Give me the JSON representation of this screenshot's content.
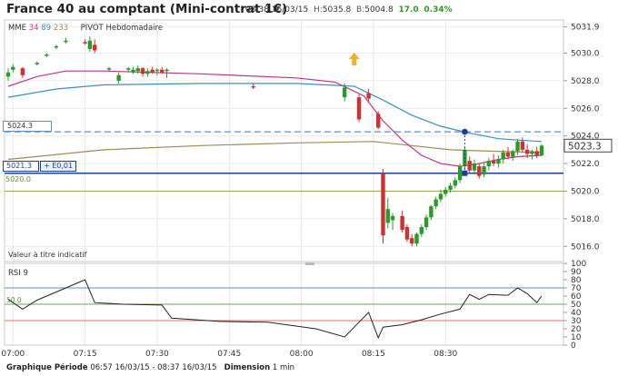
{
  "header": {
    "title": "France 40 au comptant (Mini-contrat 1€)",
    "time": "08:38 16/03/15",
    "high_label": "H:",
    "high": "5035.8",
    "low_label": "B:",
    "low": "5004.8",
    "change": "17.0",
    "change_pct": "0.34%"
  },
  "legend": {
    "mme_label": "MME",
    "mme1": "34",
    "mme2": "89",
    "mme3": "233",
    "pivot_label": "PIVOT",
    "pivot_period": "Hebdomadaire"
  },
  "tags": {
    "blue_line": "5024.3",
    "current_line": "5021.3",
    "current_delta": "+ E0,01",
    "green_line": "5020.0",
    "current_price": "5023.3"
  },
  "note": "Valeur à titre indicatif",
  "rsi": {
    "label": "RSI",
    "period": "9",
    "level_label": "50.0"
  },
  "footer": {
    "period_label": "Graphique Période",
    "period_value": "06:57 16/03/15 - 08:37 16/03/15",
    "dimension_label": "Dimension",
    "dimension_value": "1 min"
  },
  "colors": {
    "up": "#2a9a2a",
    "down": "#d13030",
    "ema34": "#c2338a",
    "ema89": "#3a8fc0",
    "ema233": "#a08a55",
    "current_line": "#1a3fa0",
    "pivot_line": "#5a8fd0",
    "arrow": "#f0b030"
  },
  "chart_data": [
    {
      "type": "candlestick",
      "title": "France 40 au comptant (Mini-contrat 1€)",
      "x_ticks": [
        "07:00",
        "07:15",
        "07:30",
        "07:45",
        "08:00",
        "08:15",
        "08:30"
      ],
      "y_ticks": [
        5016.0,
        5018.0,
        5020.0,
        5022.0,
        5024.0,
        5026.0,
        5028.0,
        5030.0,
        5031.9
      ],
      "ylim": [
        5014.9,
        5032.4
      ],
      "current_price": 5023.3,
      "horizontal_lines": [
        5024.3,
        5021.3,
        5020.0
      ],
      "candles": [
        {
          "t": 0,
          "o": 5028.3,
          "h": 5028.9,
          "l": 5028.0,
          "c": 5028.6
        },
        {
          "t": 1,
          "o": 5028.8,
          "h": 5029.2,
          "l": 5028.6,
          "c": 5029.0
        },
        {
          "t": 3,
          "o": 5028.9,
          "h": 5029.0,
          "l": 5028.2,
          "c": 5028.4
        },
        {
          "t": 6,
          "o": 5029.2,
          "h": 5029.4,
          "l": 5029.1,
          "c": 5029.3
        },
        {
          "t": 8,
          "o": 5029.8,
          "h": 5030.0,
          "l": 5029.7,
          "c": 5029.9
        },
        {
          "t": 10,
          "o": 5030.4,
          "h": 5030.6,
          "l": 5030.3,
          "c": 5030.5
        },
        {
          "t": 12,
          "o": 5030.8,
          "h": 5031.1,
          "l": 5030.7,
          "c": 5030.9
        },
        {
          "t": 16,
          "o": 5030.8,
          "h": 5031.0,
          "l": 5030.6,
          "c": 5030.7
        },
        {
          "t": 17,
          "o": 5030.3,
          "h": 5031.2,
          "l": 5030.1,
          "c": 5030.9
        },
        {
          "t": 18,
          "o": 5030.6,
          "h": 5031.0,
          "l": 5030.0,
          "c": 5030.2
        },
        {
          "t": 21,
          "o": 5028.8,
          "h": 5029.0,
          "l": 5028.7,
          "c": 5028.9
        },
        {
          "t": 23,
          "o": 5028.0,
          "h": 5028.6,
          "l": 5027.8,
          "c": 5028.4
        },
        {
          "t": 25,
          "o": 5028.8,
          "h": 5029.0,
          "l": 5028.6,
          "c": 5028.9
        },
        {
          "t": 26,
          "o": 5028.6,
          "h": 5029.0,
          "l": 5028.5,
          "c": 5028.8
        },
        {
          "t": 27,
          "o": 5028.7,
          "h": 5029.1,
          "l": 5028.5,
          "c": 5028.9
        },
        {
          "t": 28,
          "o": 5028.9,
          "h": 5029.0,
          "l": 5028.3,
          "c": 5028.5
        },
        {
          "t": 29,
          "o": 5028.5,
          "h": 5028.9,
          "l": 5028.3,
          "c": 5028.7
        },
        {
          "t": 30,
          "o": 5028.8,
          "h": 5029.0,
          "l": 5028.5,
          "c": 5028.6
        },
        {
          "t": 31,
          "o": 5028.7,
          "h": 5028.9,
          "l": 5028.4,
          "c": 5028.8
        },
        {
          "t": 32,
          "o": 5028.8,
          "h": 5029.0,
          "l": 5028.5,
          "c": 5028.6
        },
        {
          "t": 33,
          "o": 5028.7,
          "h": 5028.9,
          "l": 5028.2,
          "c": 5028.8
        },
        {
          "t": 51,
          "o": 5027.6,
          "h": 5027.8,
          "l": 5027.4,
          "c": 5027.5
        },
        {
          "t": 70,
          "o": 5026.8,
          "h": 5027.8,
          "l": 5026.5,
          "c": 5027.5
        },
        {
          "t": 73,
          "o": 5026.8,
          "h": 5027.0,
          "l": 5025.0,
          "c": 5025.2
        },
        {
          "t": 75,
          "o": 5027.1,
          "h": 5027.4,
          "l": 5026.5,
          "c": 5026.7
        },
        {
          "t": 77,
          "o": 5025.6,
          "h": 5025.8,
          "l": 5024.5,
          "c": 5024.6
        },
        {
          "t": 78,
          "o": 5021.3,
          "h": 5021.6,
          "l": 5016.2,
          "c": 5016.8
        },
        {
          "t": 79,
          "o": 5017.7,
          "h": 5019.5,
          "l": 5017.3,
          "c": 5018.7
        },
        {
          "t": 80,
          "o": 5017.9,
          "h": 5018.4,
          "l": 5017.2,
          "c": 5018.2
        },
        {
          "t": 82,
          "o": 5018.2,
          "h": 5018.6,
          "l": 5017.0,
          "c": 5017.2
        },
        {
          "t": 83,
          "o": 5017.4,
          "h": 5017.6,
          "l": 5016.3,
          "c": 5016.5
        },
        {
          "t": 84,
          "o": 5016.6,
          "h": 5016.9,
          "l": 5016.0,
          "c": 5016.2
        },
        {
          "t": 85,
          "o": 5016.2,
          "h": 5017.0,
          "l": 5016.0,
          "c": 5016.9
        },
        {
          "t": 86,
          "o": 5016.9,
          "h": 5017.6,
          "l": 5016.7,
          "c": 5017.4
        },
        {
          "t": 87,
          "o": 5017.4,
          "h": 5018.3,
          "l": 5017.2,
          "c": 5018.1
        },
        {
          "t": 88,
          "o": 5018.1,
          "h": 5019.0,
          "l": 5017.9,
          "c": 5018.9
        },
        {
          "t": 89,
          "o": 5018.9,
          "h": 5019.6,
          "l": 5018.7,
          "c": 5019.4
        },
        {
          "t": 90,
          "o": 5019.4,
          "h": 5020.1,
          "l": 5019.2,
          "c": 5019.8
        },
        {
          "t": 91,
          "o": 5019.8,
          "h": 5020.3,
          "l": 5019.6,
          "c": 5020.1
        },
        {
          "t": 92,
          "o": 5020.1,
          "h": 5020.6,
          "l": 5019.9,
          "c": 5020.4
        },
        {
          "t": 93,
          "o": 5020.4,
          "h": 5021.0,
          "l": 5020.2,
          "c": 5020.8
        },
        {
          "t": 94,
          "o": 5020.8,
          "h": 5022.0,
          "l": 5020.6,
          "c": 5021.8
        },
        {
          "t": 95,
          "o": 5021.8,
          "h": 5023.2,
          "l": 5021.6,
          "c": 5023.0
        },
        {
          "t": 96,
          "o": 5022.2,
          "h": 5022.5,
          "l": 5021.3,
          "c": 5021.5
        },
        {
          "t": 97,
          "o": 5021.5,
          "h": 5022.3,
          "l": 5021.2,
          "c": 5022.0
        },
        {
          "t": 98,
          "o": 5021.8,
          "h": 5022.0,
          "l": 5020.9,
          "c": 5021.1
        },
        {
          "t": 99,
          "o": 5021.2,
          "h": 5022.0,
          "l": 5021.0,
          "c": 5021.8
        },
        {
          "t": 100,
          "o": 5021.8,
          "h": 5022.4,
          "l": 5021.5,
          "c": 5022.2
        },
        {
          "t": 101,
          "o": 5022.2,
          "h": 5022.7,
          "l": 5021.8,
          "c": 5022.0
        },
        {
          "t": 102,
          "o": 5022.0,
          "h": 5022.6,
          "l": 5021.7,
          "c": 5022.3
        },
        {
          "t": 103,
          "o": 5022.3,
          "h": 5023.0,
          "l": 5022.0,
          "c": 5022.8
        },
        {
          "t": 104,
          "o": 5022.8,
          "h": 5023.2,
          "l": 5022.3,
          "c": 5022.5
        },
        {
          "t": 105,
          "o": 5022.5,
          "h": 5023.0,
          "l": 5022.2,
          "c": 5022.9
        },
        {
          "t": 106,
          "o": 5022.9,
          "h": 5023.8,
          "l": 5022.6,
          "c": 5023.6
        },
        {
          "t": 107,
          "o": 5023.6,
          "h": 5023.9,
          "l": 5022.8,
          "c": 5023.0
        },
        {
          "t": 108,
          "o": 5023.0,
          "h": 5023.4,
          "l": 5022.4,
          "c": 5022.7
        },
        {
          "t": 109,
          "o": 5022.7,
          "h": 5023.0,
          "l": 5022.3,
          "c": 5022.9
        },
        {
          "t": 110,
          "o": 5022.9,
          "h": 5023.2,
          "l": 5022.4,
          "c": 5022.6
        },
        {
          "t": 111,
          "o": 5022.6,
          "h": 5023.4,
          "l": 5022.5,
          "c": 5023.3
        }
      ],
      "ema34": [
        {
          "t": 0,
          "v": 5027.6
        },
        {
          "t": 6,
          "v": 5028.3
        },
        {
          "t": 12,
          "v": 5028.7
        },
        {
          "t": 20,
          "v": 5028.7
        },
        {
          "t": 40,
          "v": 5028.5
        },
        {
          "t": 60,
          "v": 5028.2
        },
        {
          "t": 68,
          "v": 5027.9
        },
        {
          "t": 74,
          "v": 5026.9
        },
        {
          "t": 78,
          "v": 5025.1
        },
        {
          "t": 82,
          "v": 5023.7
        },
        {
          "t": 86,
          "v": 5022.6
        },
        {
          "t": 90,
          "v": 5022.0
        },
        {
          "t": 94,
          "v": 5021.8
        },
        {
          "t": 98,
          "v": 5022.0
        },
        {
          "t": 102,
          "v": 5022.3
        },
        {
          "t": 106,
          "v": 5022.5
        },
        {
          "t": 111,
          "v": 5022.6
        }
      ],
      "ema89": [
        {
          "t": 0,
          "v": 5026.8
        },
        {
          "t": 10,
          "v": 5027.4
        },
        {
          "t": 20,
          "v": 5027.7
        },
        {
          "t": 40,
          "v": 5027.8
        },
        {
          "t": 60,
          "v": 5027.8
        },
        {
          "t": 72,
          "v": 5027.6
        },
        {
          "t": 78,
          "v": 5026.6
        },
        {
          "t": 84,
          "v": 5025.5
        },
        {
          "t": 90,
          "v": 5024.7
        },
        {
          "t": 96,
          "v": 5024.2
        },
        {
          "t": 102,
          "v": 5023.8
        },
        {
          "t": 106,
          "v": 5023.7
        },
        {
          "t": 111,
          "v": 5023.6
        }
      ],
      "ema233": [
        {
          "t": 0,
          "v": 5022.3
        },
        {
          "t": 20,
          "v": 5023.0
        },
        {
          "t": 40,
          "v": 5023.3
        },
        {
          "t": 60,
          "v": 5023.5
        },
        {
          "t": 76,
          "v": 5023.6
        },
        {
          "t": 84,
          "v": 5023.3
        },
        {
          "t": 92,
          "v": 5023.0
        },
        {
          "t": 100,
          "v": 5022.9
        },
        {
          "t": 111,
          "v": 5022.8
        }
      ]
    },
    {
      "type": "line",
      "title": "RSI 9",
      "y_ticks": [
        0,
        10,
        20,
        30,
        40,
        50,
        60,
        70,
        80,
        90,
        100
      ],
      "ylim": [
        0,
        100
      ],
      "levels": [
        70,
        50,
        30
      ],
      "values": [
        {
          "t": 0,
          "v": 56
        },
        {
          "t": 3,
          "v": 44
        },
        {
          "t": 6,
          "v": 55
        },
        {
          "t": 10,
          "v": 65
        },
        {
          "t": 14,
          "v": 75
        },
        {
          "t": 16,
          "v": 80
        },
        {
          "t": 18,
          "v": 52
        },
        {
          "t": 24,
          "v": 50
        },
        {
          "t": 32,
          "v": 49
        },
        {
          "t": 34,
          "v": 33
        },
        {
          "t": 44,
          "v": 29
        },
        {
          "t": 54,
          "v": 28
        },
        {
          "t": 64,
          "v": 20
        },
        {
          "t": 70,
          "v": 10
        },
        {
          "t": 73,
          "v": 28
        },
        {
          "t": 75,
          "v": 40
        },
        {
          "t": 77,
          "v": 9
        },
        {
          "t": 78,
          "v": 22
        },
        {
          "t": 82,
          "v": 25
        },
        {
          "t": 86,
          "v": 31
        },
        {
          "t": 90,
          "v": 38
        },
        {
          "t": 94,
          "v": 44
        },
        {
          "t": 96,
          "v": 62
        },
        {
          "t": 98,
          "v": 56
        },
        {
          "t": 100,
          "v": 62
        },
        {
          "t": 104,
          "v": 61
        },
        {
          "t": 106,
          "v": 70
        },
        {
          "t": 108,
          "v": 63
        },
        {
          "t": 110,
          "v": 52
        },
        {
          "t": 111,
          "v": 60
        }
      ]
    }
  ]
}
